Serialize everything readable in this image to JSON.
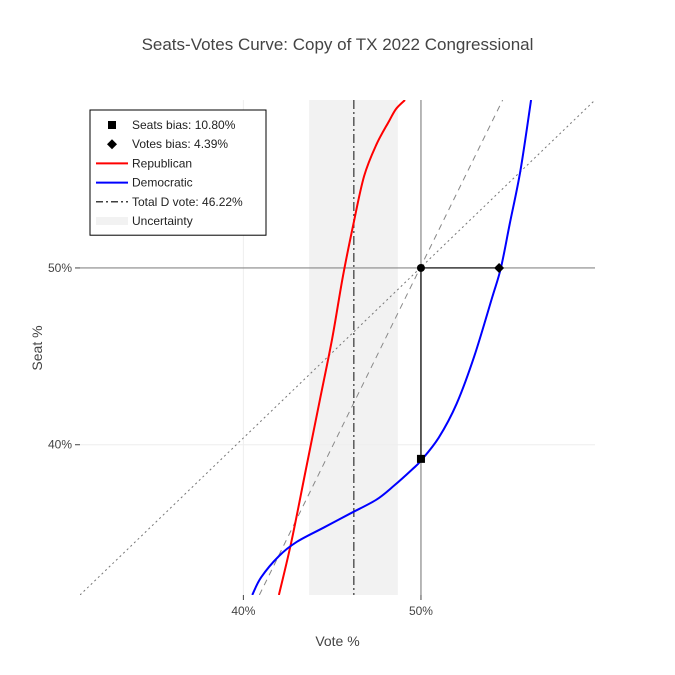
{
  "chart_data": {
    "type": "line",
    "title": "Seats-Votes Curve: Copy of TX 2022 Congressional",
    "xlabel": "Vote %",
    "ylabel": "Seat %",
    "xlim": [
      30.8,
      59.8
    ],
    "ylim": [
      31.5,
      59.5
    ],
    "x_ticks": [
      {
        "value": 40,
        "label": "40%"
      },
      {
        "value": 50,
        "label": "50%"
      }
    ],
    "y_ticks": [
      {
        "value": 40,
        "label": "40%"
      },
      {
        "value": 50,
        "label": "50%"
      }
    ],
    "grid": true,
    "legend_position": "top-left",
    "uncertainty_band": {
      "x0": 43.7,
      "x1": 48.7,
      "color": "#f2f2f2"
    },
    "total_d_vote": 46.22,
    "series": [
      {
        "name": "Republican",
        "color": "#ff0000",
        "x": [
          42.0,
          42.7,
          43.5,
          44.3,
          45.0,
          45.6,
          46.2,
          46.8,
          47.5,
          48.2,
          48.6,
          49.1
        ],
        "y": [
          31.5,
          34.5,
          38.5,
          42.5,
          46.0,
          49.5,
          52.5,
          55.2,
          57.0,
          58.3,
          59.0,
          59.5
        ]
      },
      {
        "name": "Democratic",
        "color": "#0000ff",
        "x": [
          40.5,
          41.0,
          42.0,
          43.0,
          44.5,
          46.0,
          47.5,
          48.5,
          49.5,
          50.0,
          51.0,
          52.0,
          53.0,
          54.0,
          54.5,
          55.0,
          55.6,
          56.2
        ],
        "y": [
          31.5,
          32.5,
          33.7,
          34.5,
          35.3,
          36.1,
          36.9,
          37.7,
          38.6,
          39.1,
          40.4,
          42.3,
          45.0,
          48.3,
          50.0,
          52.5,
          55.5,
          59.5
        ]
      }
    ],
    "reference_lines": [
      {
        "name": "Perfect proportionality",
        "color": "#777777",
        "style": "dotted",
        "x": [
          30.8,
          59.8
        ],
        "y": [
          31.5,
          59.5
        ]
      },
      {
        "name": "Responsiveness",
        "color": "#888888",
        "style": "dashed",
        "x": [
          40.9,
          54.6
        ],
        "y": [
          31.5,
          59.5
        ]
      }
    ],
    "markers": [
      {
        "name": "Seats bias",
        "symbol": "square",
        "x": 50.0,
        "y": 39.2
      },
      {
        "name": "Votes bias",
        "symbol": "diamond",
        "x": 54.4,
        "y": 50.0
      },
      {
        "name": "Center",
        "symbol": "circle",
        "x": 50.0,
        "y": 50.0
      }
    ],
    "legend": [
      {
        "symbol": "square",
        "label": "Seats bias: 10.80%"
      },
      {
        "symbol": "diamond",
        "label": "Votes bias: 4.39%"
      },
      {
        "symbol": "line",
        "color": "#ff0000",
        "label": "Republican"
      },
      {
        "symbol": "line",
        "color": "#0000ff",
        "label": "Democratic"
      },
      {
        "symbol": "dashdot",
        "color": "#000000",
        "label": "Total D vote: 46.22%"
      },
      {
        "symbol": "band",
        "color": "#f2f2f2",
        "label": "Uncertainty"
      }
    ]
  }
}
